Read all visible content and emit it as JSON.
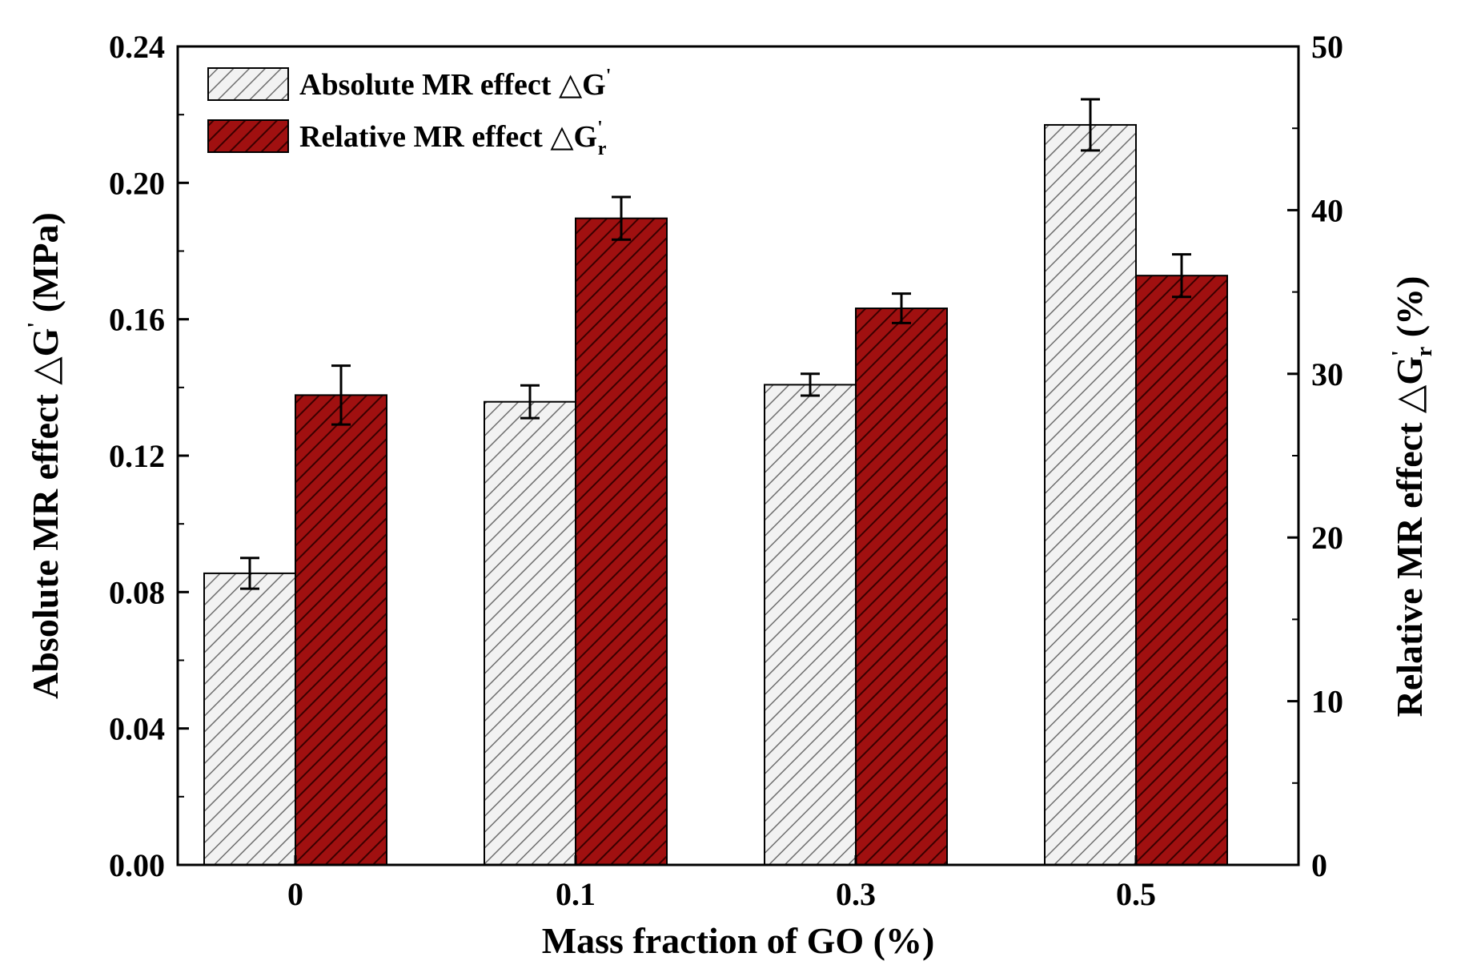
{
  "chart_data": {
    "type": "bar",
    "categories": [
      "0",
      "0.1",
      "0.3",
      "0.5"
    ],
    "xlabel": "Mass fraction of GO (%)",
    "ylabel_left": {
      "text": "Absolute MR effect △G",
      "sup": "'",
      "sub": "",
      "tail": " (MPa)"
    },
    "ylabel_right": {
      "text": "Relative MR effect △G",
      "sup": "'",
      "sub": "r",
      "tail": " (%)"
    },
    "left_axis": {
      "min": 0,
      "max": 0.24,
      "ticks": [
        "0.00",
        "0.04",
        "0.08",
        "0.12",
        "0.16",
        "0.20",
        "0.24"
      ]
    },
    "right_axis": {
      "min": 0,
      "max": 50,
      "ticks": [
        "0",
        "10",
        "20",
        "30",
        "40",
        "50"
      ]
    },
    "series": [
      {
        "name": "Absolute MR effect △G",
        "name_sup": "'",
        "name_sub": "",
        "axis": "left",
        "values": [
          0.0855,
          0.1358,
          0.1408,
          0.217
        ],
        "errors": [
          0.0045,
          0.0048,
          0.0032,
          0.0075
        ],
        "fill": "#f2f2f2",
        "hatch": "#6e6e6e",
        "pattern": "diagonal-hatch"
      },
      {
        "name": "Relative MR effect △G",
        "name_sup": "'",
        "name_sub": "r",
        "axis": "right",
        "values": [
          28.7,
          39.5,
          34.0,
          36.0
        ],
        "errors": [
          1.8,
          1.3,
          0.9,
          1.3
        ],
        "fill": "#a01010",
        "hatch": "#3a0000",
        "pattern": "diagonal-hatch"
      }
    ],
    "legend_position": "top-left",
    "grid": false
  }
}
